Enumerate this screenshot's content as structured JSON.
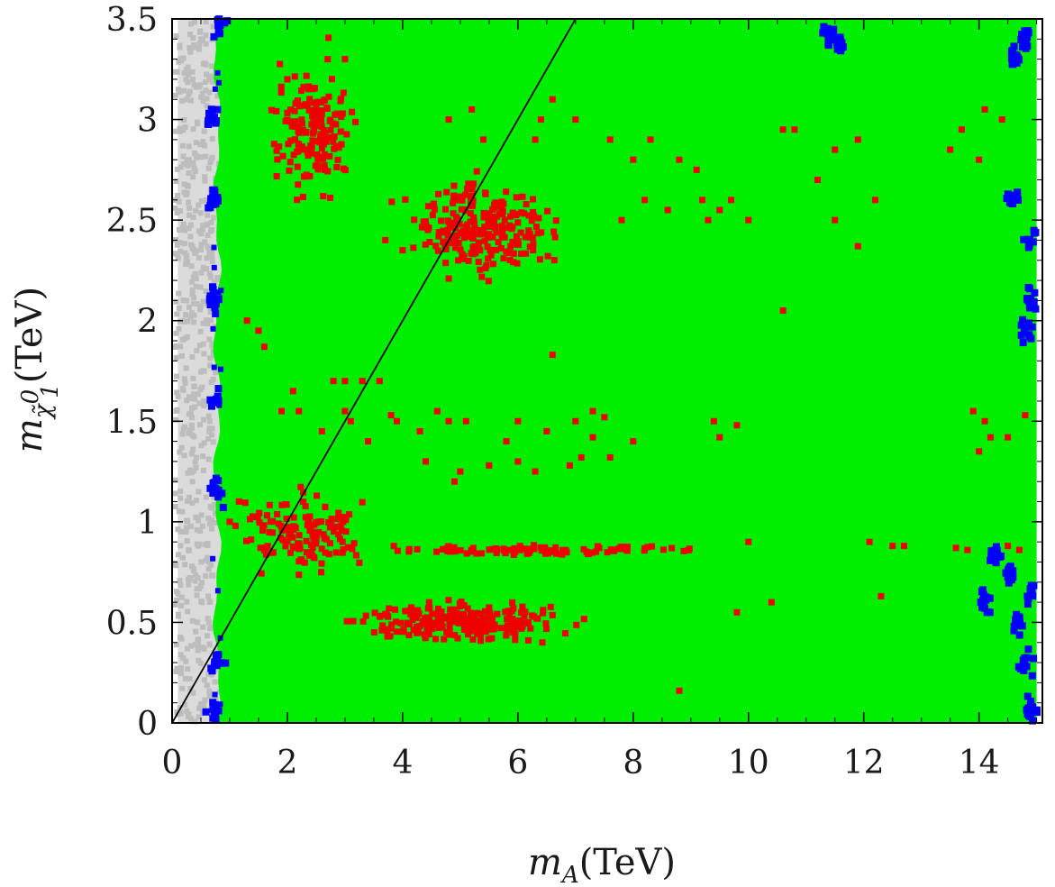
{
  "chart_data": {
    "type": "scatter",
    "title": "",
    "xlabel": {
      "symbol": "m",
      "subscript": "A",
      "unit": "(TeV)"
    },
    "ylabel": {
      "symbol": "m",
      "subscript": "χ̃",
      "sub_sup": "0",
      "sub_sub": "1",
      "unit": "(TeV)"
    },
    "xlim": [
      0,
      15.1
    ],
    "ylim": [
      0,
      3.5
    ],
    "x_ticks": [
      0,
      2,
      4,
      6,
      8,
      10,
      12,
      14
    ],
    "x_tick_labels": [
      "0",
      "2",
      "4",
      "6",
      "8",
      "10",
      "12",
      "14"
    ],
    "y_ticks": [
      0,
      0.5,
      1,
      1.5,
      2,
      2.5,
      3,
      3.5
    ],
    "y_tick_labels": [
      "0",
      "0.5",
      "1",
      "1.5",
      "2",
      "2.5",
      "3",
      "3.5"
    ],
    "grid": false,
    "colors": {
      "gray": "#bdbdbd",
      "blue": "#0000ff",
      "green": "#00ee00",
      "red": "#ee0000",
      "line": "#000000"
    },
    "regions": [
      {
        "color": "gray",
        "description": "points with low m_A",
        "x_range": [
          0.1,
          0.8
        ],
        "y_range": [
          0,
          3.5
        ]
      },
      {
        "color": "green",
        "x_range": [
          0.75,
          15.0
        ],
        "y_range": [
          0,
          3.5
        ]
      }
    ],
    "blue_clusters": [
      [
        0.75,
        0.05
      ],
      [
        0.8,
        0.3
      ],
      [
        0.78,
        1.15
      ],
      [
        0.75,
        1.6
      ],
      [
        0.72,
        2.1
      ],
      [
        0.72,
        2.6
      ],
      [
        0.7,
        3.0
      ],
      [
        0.82,
        3.45
      ],
      [
        14.6,
        3.3
      ],
      [
        14.8,
        3.4
      ],
      [
        14.6,
        2.6
      ],
      [
        14.9,
        2.4
      ],
      [
        14.9,
        2.1
      ],
      [
        14.8,
        1.95
      ],
      [
        14.5,
        0.75
      ],
      [
        14.7,
        0.5
      ],
      [
        14.8,
        0.3
      ],
      [
        14.9,
        0.05
      ],
      [
        14.3,
        0.85
      ],
      [
        14.1,
        0.6
      ],
      [
        14.9,
        0.65
      ],
      [
        11.4,
        3.42
      ],
      [
        11.6,
        3.38
      ]
    ],
    "red_clusters": [
      {
        "cx": 2.5,
        "cy": 2.95,
        "sx": 0.55,
        "sy": 0.22,
        "n": 160
      },
      {
        "cx": 5.4,
        "cy": 2.45,
        "sx": 0.95,
        "sy": 0.18,
        "n": 230
      },
      {
        "cx": 2.3,
        "cy": 0.95,
        "sx": 0.75,
        "sy": 0.16,
        "n": 140
      },
      {
        "cx": 5.1,
        "cy": 0.5,
        "sx": 1.3,
        "sy": 0.07,
        "n": 240
      },
      {
        "cx": 6.3,
        "cy": 0.86,
        "sx": 2.2,
        "sy": 0.02,
        "n": 95
      }
    ],
    "red_points": [
      [
        2.0,
        3.2
      ],
      [
        3.0,
        3.3
      ],
      [
        2.7,
        3.3
      ],
      [
        3.7,
        2.4
      ],
      [
        4.0,
        2.35
      ],
      [
        4.8,
        3.0
      ],
      [
        5.2,
        3.05
      ],
      [
        5.4,
        2.9
      ],
      [
        6.3,
        2.9
      ],
      [
        6.4,
        3.0
      ],
      [
        6.6,
        3.1
      ],
      [
        7.0,
        3.0
      ],
      [
        7.6,
        2.9
      ],
      [
        8.0,
        2.8
      ],
      [
        8.3,
        2.9
      ],
      [
        8.8,
        2.8
      ],
      [
        9.2,
        2.6
      ],
      [
        9.7,
        2.6
      ],
      [
        10.0,
        2.5
      ],
      [
        10.6,
        2.95
      ],
      [
        10.8,
        2.95
      ],
      [
        11.2,
        2.7
      ],
      [
        11.5,
        2.85
      ],
      [
        11.9,
        2.9
      ],
      [
        11.5,
        2.5
      ],
      [
        12.2,
        2.6
      ],
      [
        13.5,
        2.85
      ],
      [
        13.7,
        2.95
      ],
      [
        14.1,
        3.05
      ],
      [
        14.4,
        3.0
      ],
      [
        14.0,
        2.8
      ],
      [
        8.2,
        2.6
      ],
      [
        9.1,
        2.75
      ],
      [
        9.5,
        2.55
      ],
      [
        7.8,
        2.5
      ],
      [
        8.6,
        2.55
      ],
      [
        9.3,
        2.5
      ],
      [
        11.9,
        2.37
      ],
      [
        6.6,
        1.83
      ],
      [
        10.6,
        2.05
      ],
      [
        1.5,
        1.95
      ],
      [
        1.6,
        1.87
      ],
      [
        1.3,
        2.0
      ],
      [
        2.1,
        1.65
      ],
      [
        2.8,
        1.7
      ],
      [
        3.0,
        1.7
      ],
      [
        3.3,
        1.7
      ],
      [
        3.6,
        1.7
      ],
      [
        3.0,
        1.55
      ],
      [
        3.1,
        1.5
      ],
      [
        3.4,
        1.4
      ],
      [
        3.9,
        1.5
      ],
      [
        4.3,
        1.45
      ],
      [
        4.6,
        1.55
      ],
      [
        4.8,
        1.5
      ],
      [
        5.1,
        1.5
      ],
      [
        5.8,
        1.4
      ],
      [
        6.0,
        1.5
      ],
      [
        6.5,
        1.45
      ],
      [
        7.0,
        1.5
      ],
      [
        7.3,
        1.42
      ],
      [
        7.6,
        1.32
      ],
      [
        8.0,
        1.4
      ],
      [
        9.4,
        1.5
      ],
      [
        9.5,
        1.42
      ],
      [
        9.8,
        1.48
      ],
      [
        7.3,
        1.55
      ],
      [
        7.5,
        1.52
      ],
      [
        4.4,
        1.3
      ],
      [
        5.0,
        1.25
      ],
      [
        5.5,
        1.28
      ],
      [
        6.0,
        1.3
      ],
      [
        6.3,
        1.25
      ],
      [
        6.9,
        1.28
      ],
      [
        7.1,
        1.32
      ],
      [
        2.6,
        1.45
      ],
      [
        4.9,
        1.2
      ],
      [
        13.9,
        1.55
      ],
      [
        14.1,
        1.5
      ],
      [
        14.2,
        1.42
      ],
      [
        14.0,
        1.35
      ],
      [
        14.5,
        1.42
      ],
      [
        14.8,
        1.53
      ],
      [
        9.8,
        0.55
      ],
      [
        10.0,
        0.9
      ],
      [
        12.1,
        0.9
      ],
      [
        12.5,
        0.88
      ],
      [
        12.7,
        0.88
      ],
      [
        13.6,
        0.87
      ],
      [
        13.8,
        0.86
      ],
      [
        14.5,
        0.88
      ],
      [
        14.7,
        0.86
      ],
      [
        12.3,
        0.63
      ],
      [
        10.4,
        0.6
      ],
      [
        8.8,
        0.16
      ],
      [
        1.1,
        0.98
      ],
      [
        1.0,
        1.0
      ],
      [
        2.2,
        1.55
      ],
      [
        1.9,
        1.55
      ],
      [
        3.8,
        1.53
      ]
    ],
    "diagonal_line": {
      "from": [
        0,
        0
      ],
      "to": [
        7.0,
        3.5
      ]
    }
  }
}
